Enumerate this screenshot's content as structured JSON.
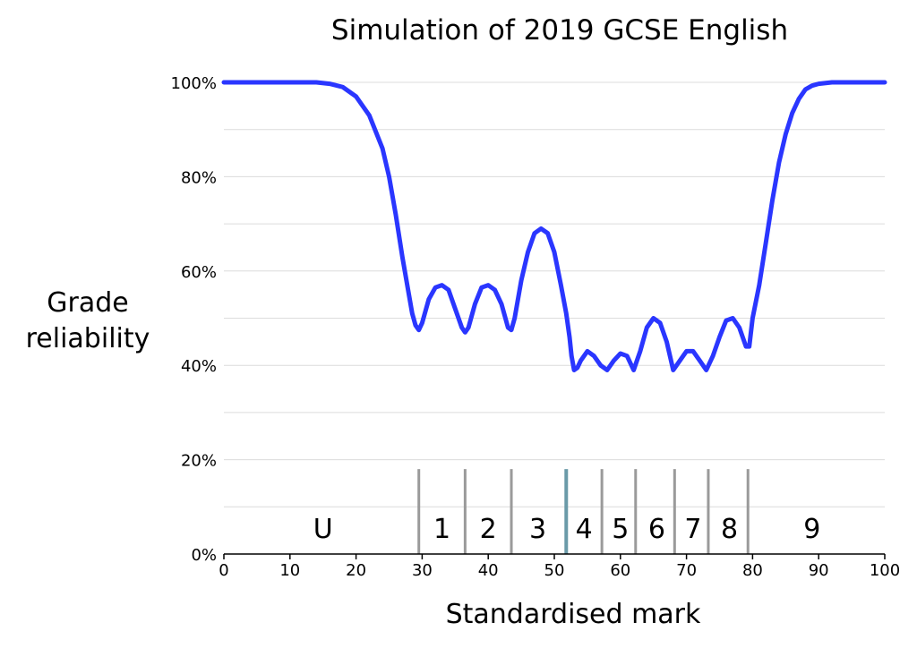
{
  "chart_data": {
    "type": "line",
    "title": "Simulation of 2019 GCSE English",
    "xlabel": "Standardised mark",
    "ylabel_lines": [
      "Grade",
      "reliability"
    ],
    "xlim": [
      0,
      100
    ],
    "ylim": [
      0,
      100
    ],
    "x_ticks": [
      0,
      10,
      20,
      30,
      40,
      50,
      60,
      70,
      80,
      90,
      100
    ],
    "x_tick_labels": [
      "0",
      "10",
      "20",
      "30",
      "40",
      "50",
      "60",
      "70",
      "80",
      "90",
      "100"
    ],
    "y_ticks": [
      0,
      20,
      40,
      60,
      80,
      100
    ],
    "y_tick_labels": [
      "0%",
      "20%",
      "40%",
      "60%",
      "80%",
      "100%"
    ],
    "grid": "horizontal",
    "line_color": "#2a36ff",
    "series": [
      {
        "x": [
          0,
          5,
          10,
          14,
          16,
          18,
          20,
          22,
          24,
          25,
          26,
          27,
          28,
          28.5,
          29,
          29.5,
          30,
          31,
          32,
          33,
          34,
          35,
          36,
          36.5,
          37,
          38,
          39,
          40,
          41,
          42,
          43,
          43.5,
          44,
          45,
          46,
          47,
          48,
          49,
          50,
          51,
          51.8,
          52.3,
          52.6,
          53,
          53.5,
          54,
          55,
          56,
          57,
          58,
          59,
          60,
          61,
          62,
          63,
          64,
          65,
          66,
          67,
          68,
          69,
          70,
          71,
          72,
          73,
          74,
          75,
          76,
          77,
          78,
          78.5,
          79,
          79.5,
          80,
          81,
          82,
          83,
          84,
          85,
          86,
          87,
          88,
          89,
          90,
          92,
          95,
          100
        ],
        "y": [
          100,
          100,
          100,
          100,
          99.7,
          99,
          97,
          93,
          86,
          80,
          72,
          63,
          55,
          51,
          48.5,
          47.5,
          49,
          54,
          56.5,
          57,
          56,
          52,
          48,
          47,
          48,
          53,
          56.5,
          57,
          56,
          53,
          48,
          47.5,
          50,
          58,
          64,
          68,
          69,
          68,
          64,
          57,
          51,
          46,
          42,
          39,
          39.5,
          41,
          43,
          42,
          40,
          39,
          41,
          42.5,
          42,
          39,
          43,
          48,
          50,
          49,
          45,
          39,
          41,
          43,
          43,
          41,
          39,
          42,
          46,
          49.5,
          50,
          48,
          46,
          44,
          44,
          50,
          57,
          66,
          75,
          83,
          89,
          93.5,
          96.5,
          98.5,
          99.3,
          99.7,
          100,
          100,
          100
        ]
      }
    ],
    "grade_boundaries": [
      29.5,
      36.5,
      43.5,
      51.8,
      57.2,
      62.3,
      68.2,
      73.3,
      79.3
    ],
    "grade_boundary_top": 18,
    "grades": [
      {
        "label": "U",
        "x": 15
      },
      {
        "label": "1",
        "x": 33
      },
      {
        "label": "2",
        "x": 40
      },
      {
        "label": "3",
        "x": 47.5
      },
      {
        "label": "4",
        "x": 54.5
      },
      {
        "label": "5",
        "x": 60
      },
      {
        "label": "6",
        "x": 65.5
      },
      {
        "label": "7",
        "x": 71
      },
      {
        "label": "8",
        "x": 76.5
      },
      {
        "label": "9",
        "x": 89
      }
    ]
  }
}
